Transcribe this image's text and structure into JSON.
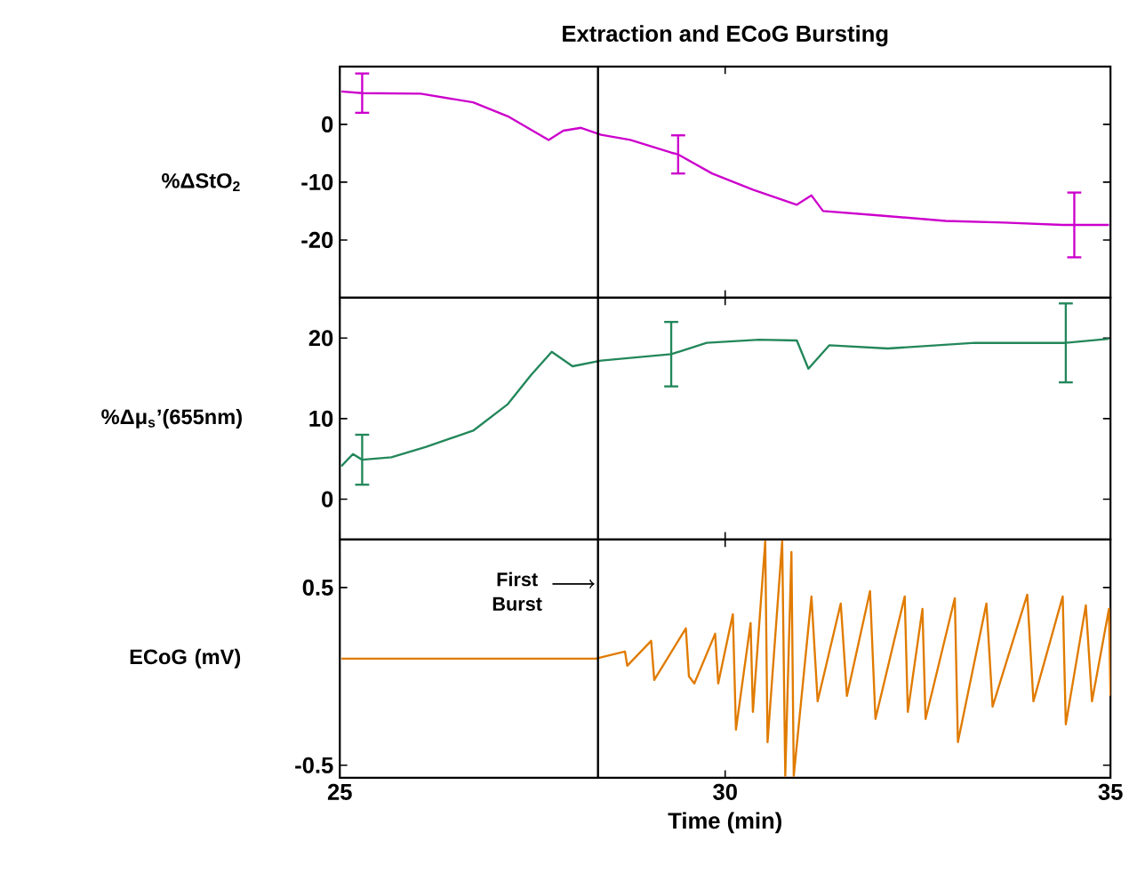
{
  "chart_data": [
    {
      "type": "line",
      "title": "Extraction and ECoG Bursting",
      "ylabel": "%ΔStO$_{2}$",
      "color": "#cc00cc",
      "x": [
        25.02,
        25.29,
        26.05,
        26.73,
        27.18,
        27.71,
        27.9,
        28.13,
        28.39,
        28.77,
        29.3,
        29.39,
        29.83,
        30.36,
        30.93,
        31.12,
        31.27,
        31.95,
        32.86,
        33.62,
        34.38,
        34.53,
        34.98
      ],
      "values": [
        5.7,
        5.4,
        5.3,
        3.8,
        1.4,
        -2.7,
        -1.1,
        -0.6,
        -1.8,
        -2.7,
        -4.9,
        -5.2,
        -8.5,
        -11.3,
        -13.9,
        -12.3,
        -15,
        -15.7,
        -16.7,
        -17,
        -17.4,
        -17.4,
        -17.4
      ],
      "errors": [
        null,
        3.4,
        null,
        null,
        null,
        null,
        null,
        null,
        null,
        null,
        null,
        3.3,
        null,
        null,
        null,
        null,
        null,
        null,
        null,
        null,
        null,
        5.6,
        null
      ],
      "xlim": [
        25,
        35
      ],
      "ylim": [
        -30,
        10
      ],
      "xticks": [
        25,
        30,
        35
      ],
      "yticks": [
        0,
        -10,
        -20
      ],
      "tick_labels": "y",
      "ref_lines": [
        {
          "axis": "x",
          "value": 28.35,
          "color": "#000000"
        }
      ]
    },
    {
      "type": "line",
      "ylabel": "%Δμ$_{s}$’(655nm)",
      "color": "#23875a",
      "x": [
        25.02,
        25.17,
        25.29,
        25.67,
        26.12,
        26.73,
        27.18,
        27.48,
        27.75,
        28.02,
        28.39,
        29.3,
        29.76,
        30.44,
        30.93,
        31.08,
        31.35,
        32.11,
        33.24,
        34.42,
        34.98
      ],
      "values": [
        4.1,
        5.6,
        4.9,
        5.2,
        6.5,
        8.5,
        11.8,
        15.4,
        18.3,
        16.5,
        17.2,
        18,
        19.4,
        19.8,
        19.7,
        16.2,
        19.1,
        18.7,
        19.4,
        19.4,
        19.9
      ],
      "errors": [
        null,
        null,
        3.1,
        null,
        null,
        null,
        null,
        null,
        null,
        null,
        null,
        4,
        null,
        null,
        null,
        null,
        null,
        null,
        null,
        4.9,
        null
      ],
      "xlim": [
        25,
        35
      ],
      "ylim": [
        -5,
        25
      ],
      "xticks": [
        25,
        30,
        35
      ],
      "yticks": [
        0,
        10,
        20
      ],
      "tick_labels": "y",
      "ref_lines": [
        {
          "axis": "x",
          "value": 28.35,
          "color": "#000000"
        }
      ]
    },
    {
      "type": "line",
      "ylabel": "ECoG (mV)",
      "xlabel": "Time (min)",
      "color": "#e07b00",
      "x": [
        25.02,
        26.42,
        27.18,
        28.32,
        28.7,
        28.73,
        29.04,
        29.08,
        29.49,
        29.53,
        29.6,
        29.87,
        29.91,
        30.1,
        30.14,
        30.33,
        30.36,
        30.52,
        30.55,
        30.74,
        30.78,
        30.86,
        30.89,
        31.12,
        31.2,
        31.5,
        31.58,
        31.88,
        31.95,
        32.33,
        32.37,
        32.56,
        32.6,
        32.98,
        33.02,
        33.39,
        33.47,
        33.92,
        34.0,
        34.38,
        34.42,
        34.68,
        34.76,
        34.98,
        35.0
      ],
      "values": [
        0.1,
        0.1,
        0.1,
        0.1,
        0.14,
        0.06,
        0.2,
        -0.02,
        0.27,
        0.0,
        -0.04,
        0.24,
        -0.04,
        0.35,
        -0.3,
        0.3,
        -0.2,
        0.76,
        -0.37,
        0.76,
        -0.56,
        0.7,
        -0.56,
        0.45,
        -0.14,
        0.41,
        -0.11,
        0.48,
        -0.24,
        0.45,
        -0.2,
        0.38,
        -0.24,
        0.44,
        -0.37,
        0.41,
        -0.17,
        0.46,
        -0.14,
        0.45,
        -0.27,
        0.4,
        -0.14,
        0.38,
        -0.11
      ],
      "xlim": [
        25,
        35
      ],
      "ylim": [
        -0.57,
        0.77
      ],
      "xticks": [
        25,
        30,
        35
      ],
      "yticks": [
        0.5,
        -0.5
      ],
      "ref_lines": [
        {
          "axis": "x",
          "value": 28.35,
          "color": "#000000"
        }
      ],
      "annotations": [
        {
          "text": "First Burst",
          "x": 28.35,
          "y": 0.52
        }
      ]
    }
  ]
}
